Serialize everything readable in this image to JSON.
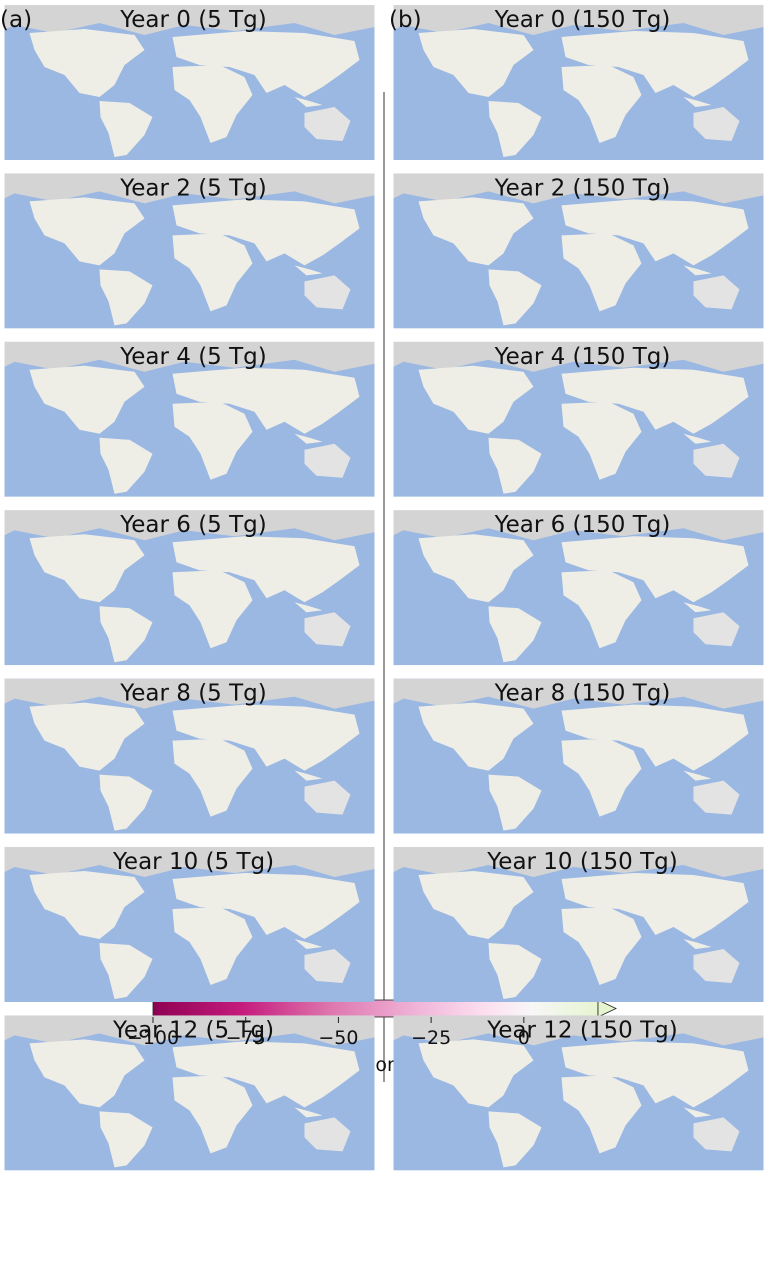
{
  "panels": [
    {
      "label": "(a)",
      "titles": [
        "Year 0 (5 Tg)",
        "Year 2 (5 Tg)",
        "Year 4 (5 Tg)",
        "Year 6 (5 Tg)",
        "Year 8 (5 Tg)",
        "Year 10 (5 Tg)",
        "Year 12 (5 Tg)"
      ]
    },
    {
      "label": "(b)",
      "titles": [
        "Year 0 (150 Tg)",
        "Year 2 (150 Tg)",
        "Year 4 (150 Tg)",
        "Year 6 (150 Tg)",
        "Year 8 (150 Tg)",
        "Year 10 (150 Tg)",
        "Year 12 (150 Tg)"
      ]
    }
  ],
  "colorbar": {
    "label": "Maize production change (%)",
    "lim": [
      -100,
      20
    ],
    "ticks": [
      {
        "value": -100,
        "label": "−100"
      },
      {
        "value": -75,
        "label": "−75"
      },
      {
        "value": -50,
        "label": "−50"
      },
      {
        "value": -25,
        "label": "−25"
      },
      0
    ]
  }
}
